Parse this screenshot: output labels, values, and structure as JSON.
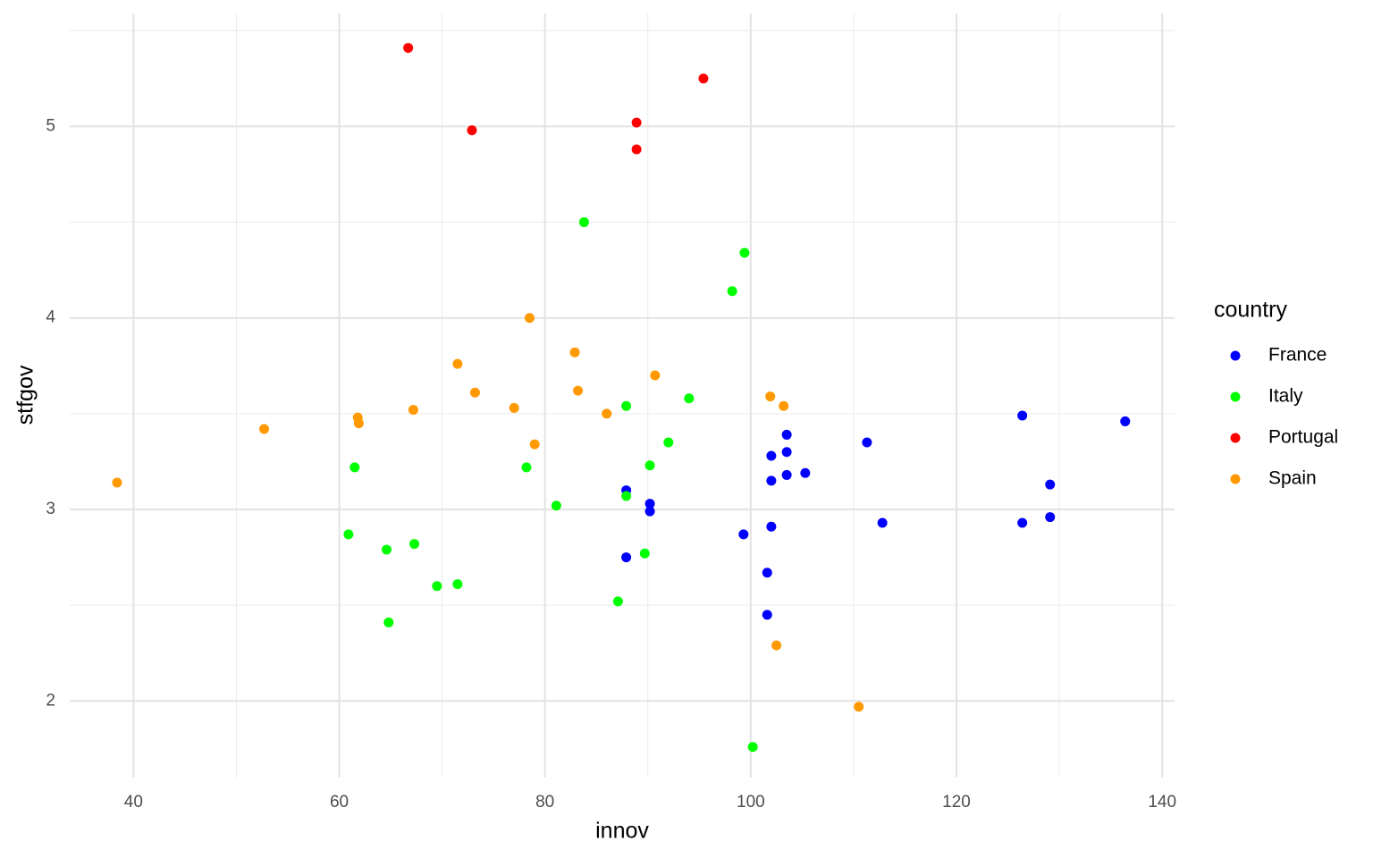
{
  "chart_data": {
    "type": "scatter",
    "x_label": "innov",
    "y_label": "stfgov",
    "legend_title": "country",
    "xlim": [
      33.8,
      141.2
    ],
    "ylim": [
      1.6,
      5.59
    ],
    "xticks": [
      40,
      60,
      80,
      100,
      120,
      140
    ],
    "yticks": [
      2,
      3,
      4,
      5
    ],
    "grid": true,
    "legend": "right",
    "series": [
      {
        "name": "France",
        "color": "#0000ff",
        "x": [
          87.9,
          90.2,
          90.2,
          87.9,
          99.3,
          101.6,
          101.6,
          102.0,
          102.0,
          102.0,
          103.5,
          103.5,
          103.5,
          105.3,
          111.3,
          112.8,
          126.4,
          126.4,
          129.1,
          129.1,
          136.4
        ],
        "values": [
          3.1,
          3.03,
          2.99,
          2.75,
          2.87,
          2.67,
          2.45,
          3.28,
          3.15,
          2.91,
          3.39,
          3.3,
          3.18,
          3.19,
          3.35,
          2.93,
          3.49,
          2.93,
          3.13,
          2.96,
          3.46
        ]
      },
      {
        "name": "Italy",
        "color": "#00ff00",
        "x": [
          83.8,
          99.4,
          98.2,
          94.0,
          87.9,
          92.0,
          90.2,
          78.2,
          61.5,
          81.1,
          87.9,
          60.9,
          64.6,
          67.3,
          89.7,
          69.5,
          71.5,
          87.1,
          64.8,
          100.2
        ],
        "values": [
          4.5,
          4.34,
          4.14,
          3.58,
          3.54,
          3.35,
          3.23,
          3.22,
          3.22,
          3.02,
          3.07,
          2.87,
          2.79,
          2.82,
          2.77,
          2.6,
          2.61,
          2.52,
          2.41,
          1.76
        ]
      },
      {
        "name": "Portugal",
        "color": "#ff0000",
        "x": [
          66.7,
          72.9,
          88.9,
          88.9,
          95.4
        ],
        "values": [
          5.41,
          4.98,
          5.02,
          4.88,
          5.25
        ]
      },
      {
        "name": "Spain",
        "color": "#ff9900",
        "x": [
          38.4,
          52.7,
          61.8,
          61.9,
          67.2,
          71.5,
          73.2,
          77.0,
          78.5,
          79.0,
          82.9,
          83.2,
          86.0,
          90.7,
          101.9,
          103.2,
          102.5,
          110.5
        ],
        "values": [
          3.14,
          3.42,
          3.48,
          3.45,
          3.52,
          3.76,
          3.61,
          3.53,
          4.0,
          3.34,
          3.82,
          3.62,
          3.5,
          3.7,
          3.59,
          3.54,
          2.29,
          1.97
        ]
      }
    ]
  }
}
